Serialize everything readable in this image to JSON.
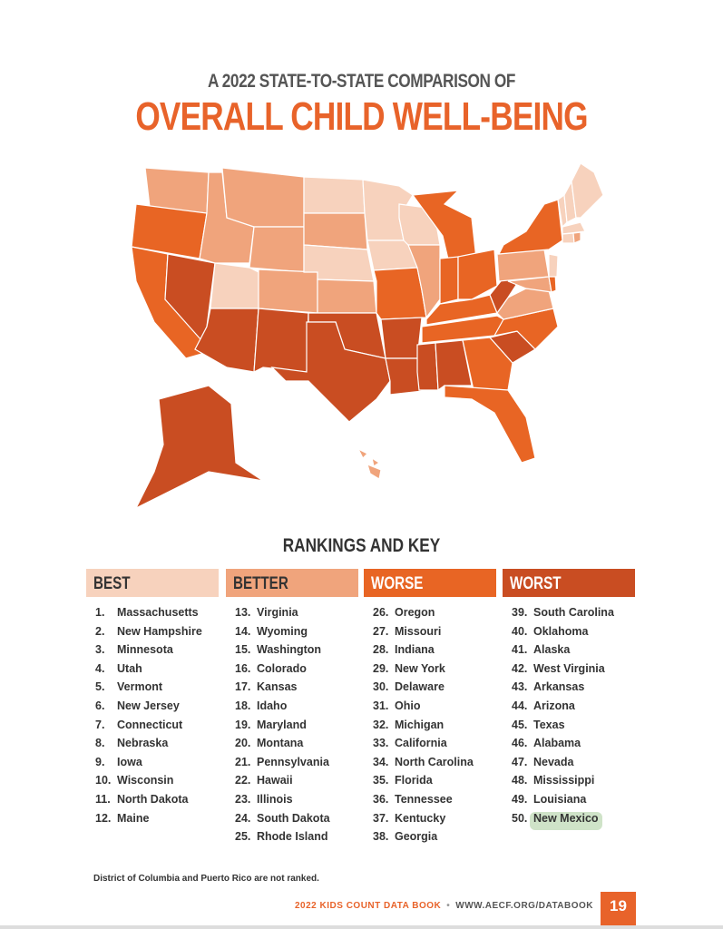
{
  "header": {
    "kicker": "A 2022 STATE-TO-STATE COMPARISON OF",
    "title": "OVERALL CHILD WELL-BEING"
  },
  "colors": {
    "best": "#f7d2bd",
    "better": "#f0a47c",
    "worse": "#e86524",
    "worst": "#c94d22",
    "highlight": "#cfe3c8"
  },
  "rankings": {
    "title": "RANKINGS AND KEY",
    "groups": [
      {
        "label": "BEST",
        "items": [
          [
            "1.",
            "Massachusetts"
          ],
          [
            "2.",
            "New Hampshire"
          ],
          [
            "3.",
            "Minnesota"
          ],
          [
            "4.",
            "Utah"
          ],
          [
            "5.",
            "Vermont"
          ],
          [
            "6.",
            "New Jersey"
          ],
          [
            "7.",
            "Connecticut"
          ],
          [
            "8.",
            "Nebraska"
          ],
          [
            "9.",
            "Iowa"
          ],
          [
            "10.",
            "Wisconsin"
          ],
          [
            "11.",
            "North Dakota"
          ],
          [
            "12.",
            "Maine"
          ]
        ]
      },
      {
        "label": "BETTER",
        "items": [
          [
            "13.",
            "Virginia"
          ],
          [
            "14.",
            "Wyoming"
          ],
          [
            "15.",
            "Washington"
          ],
          [
            "16.",
            "Colorado"
          ],
          [
            "17.",
            "Kansas"
          ],
          [
            "18.",
            "Idaho"
          ],
          [
            "19.",
            "Maryland"
          ],
          [
            "20.",
            "Montana"
          ],
          [
            "21.",
            "Pennsylvania"
          ],
          [
            "22.",
            "Hawaii"
          ],
          [
            "23.",
            "Illinois"
          ],
          [
            "24.",
            "South Dakota"
          ],
          [
            "25.",
            "Rhode Island"
          ]
        ]
      },
      {
        "label": "WORSE",
        "items": [
          [
            "26.",
            "Oregon"
          ],
          [
            "27.",
            "Missouri"
          ],
          [
            "28.",
            "Indiana"
          ],
          [
            "29.",
            "New York"
          ],
          [
            "30.",
            "Delaware"
          ],
          [
            "31.",
            "Ohio"
          ],
          [
            "32.",
            "Michigan"
          ],
          [
            "33.",
            "California"
          ],
          [
            "34.",
            "North Carolina"
          ],
          [
            "35.",
            "Florida"
          ],
          [
            "36.",
            "Tennessee"
          ],
          [
            "37.",
            "Kentucky"
          ],
          [
            "38.",
            "Georgia"
          ]
        ]
      },
      {
        "label": "WORST",
        "items": [
          [
            "39.",
            "South Carolina"
          ],
          [
            "40.",
            "Oklahoma"
          ],
          [
            "41.",
            "Alaska"
          ],
          [
            "42.",
            "West Virginia"
          ],
          [
            "43.",
            "Arkansas"
          ],
          [
            "44.",
            "Arizona"
          ],
          [
            "45.",
            "Texas"
          ],
          [
            "46.",
            "Alabama"
          ],
          [
            "47.",
            "Nevada"
          ],
          [
            "48.",
            "Mississippi"
          ],
          [
            "49.",
            "Louisiana"
          ],
          [
            "50.",
            "New Mexico"
          ]
        ]
      }
    ],
    "highlighted": "New Mexico"
  },
  "note": "District of Columbia and Puerto Rico are not ranked.",
  "footer": {
    "book": "2022 KIDS COUNT DATA BOOK",
    "url": "WWW.AECF.ORG/DATABOOK",
    "page": "19"
  }
}
